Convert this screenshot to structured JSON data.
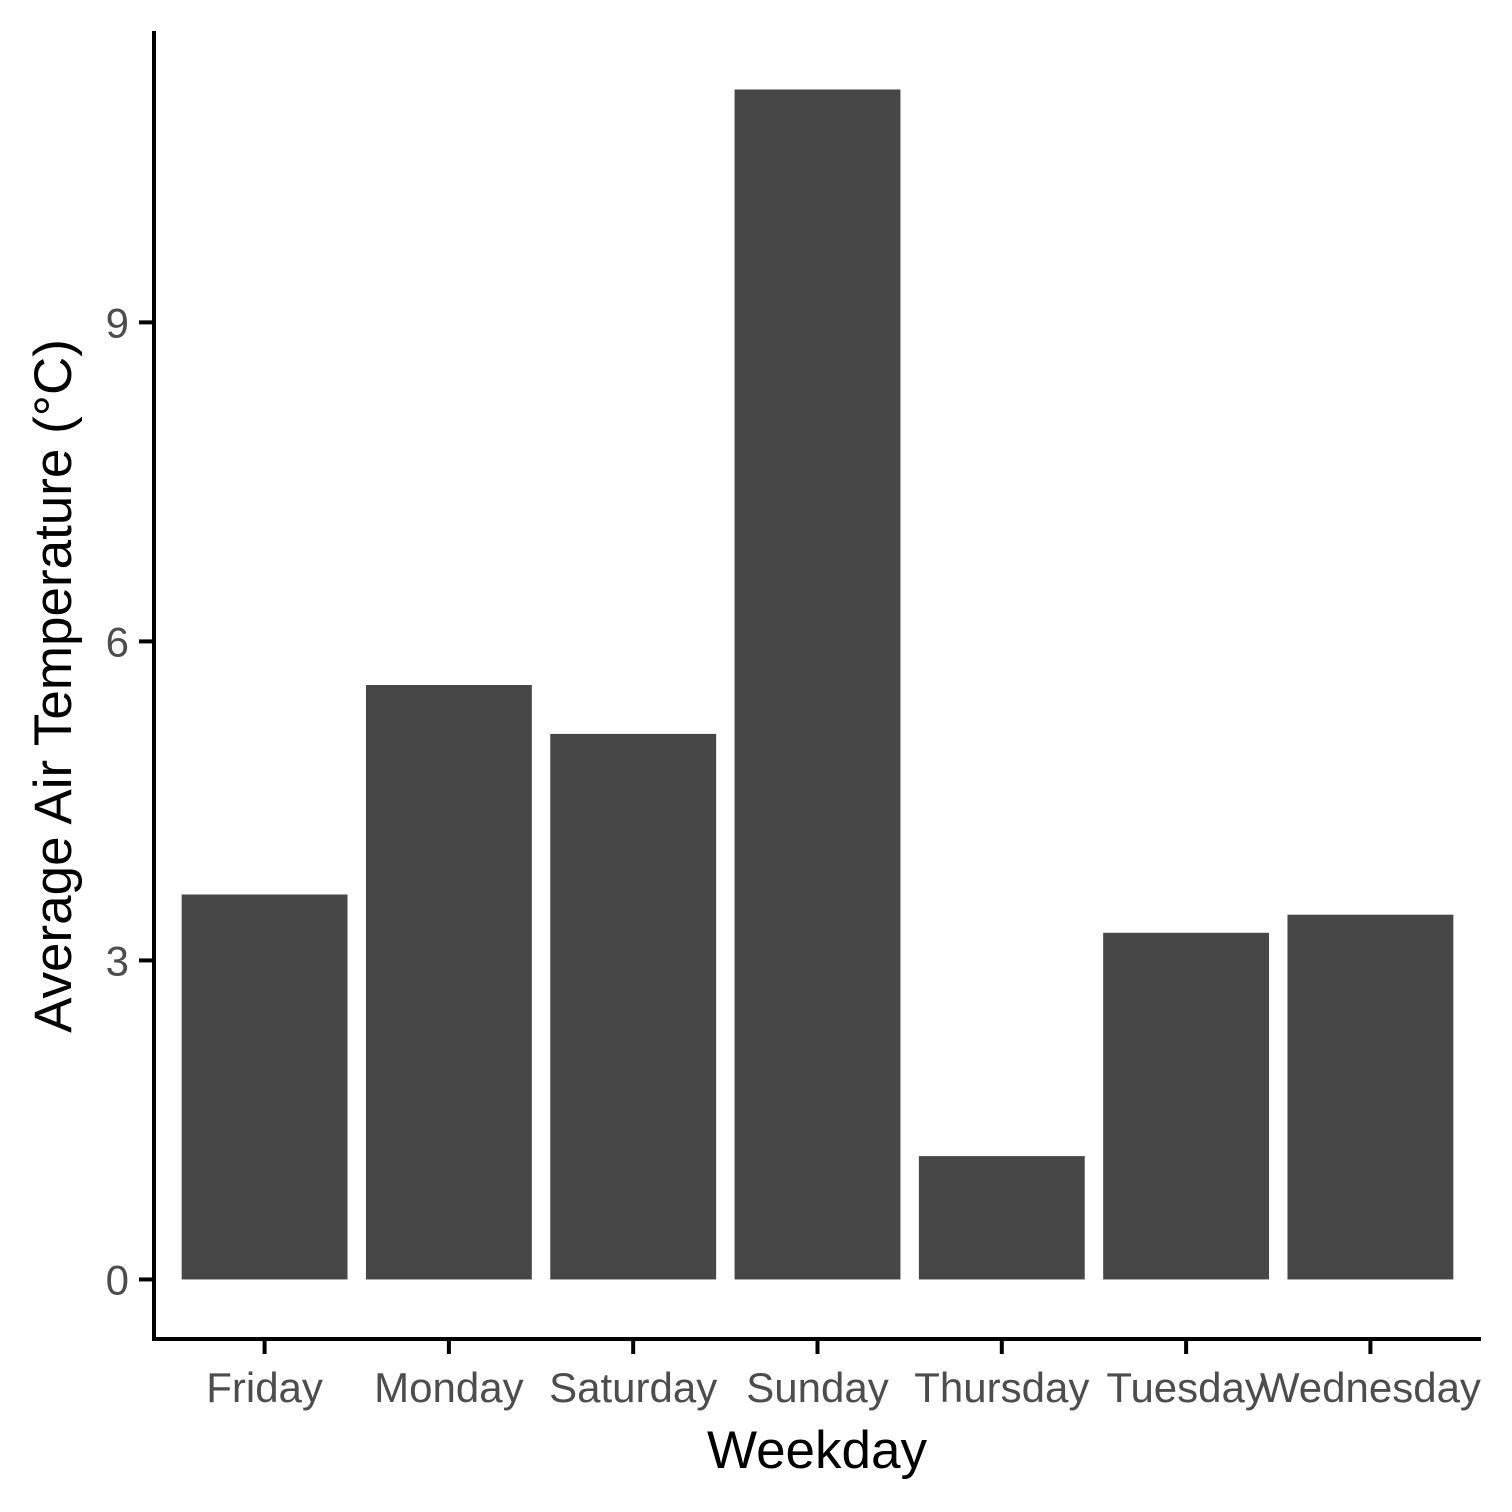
{
  "chart_data": {
    "type": "bar",
    "categories": [
      "Friday",
      "Monday",
      "Saturday",
      "Sunday",
      "Thursday",
      "Tuesday",
      "Wednesday"
    ],
    "values": [
      3.62,
      5.59,
      5.13,
      11.19,
      1.16,
      3.26,
      3.43
    ],
    "xlabel": "Weekday",
    "ylabel": "Average Air Temperature (°C)",
    "ylim": [
      -0.56,
      11.74
    ],
    "yticks": [
      0,
      3,
      6,
      9
    ],
    "grid": false,
    "legend": "none",
    "colors": {
      "bar": "#474747",
      "axis": "#000000",
      "tick_label": "#4d4d4d",
      "background": "#ffffff"
    }
  }
}
